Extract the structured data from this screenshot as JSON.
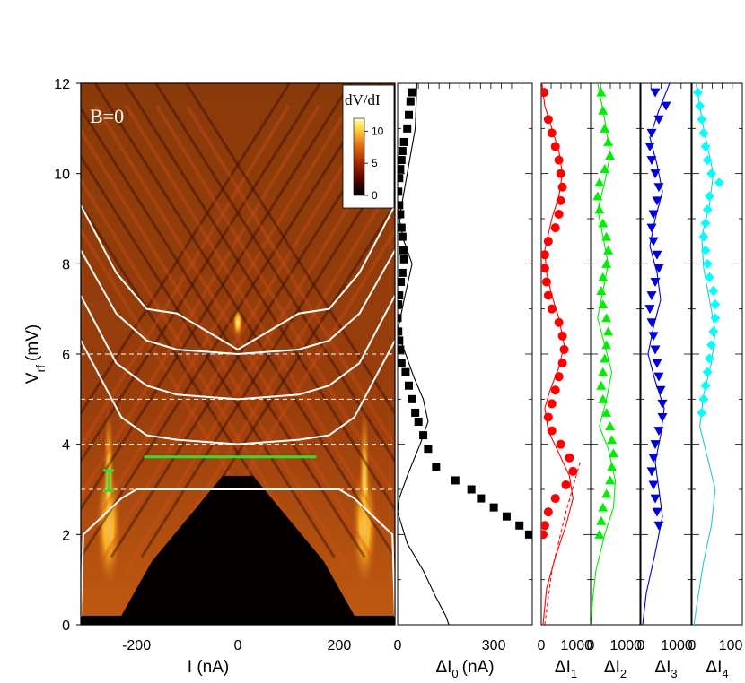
{
  "chart_data": [
    {
      "type": "heatmap",
      "annotation": "B=0",
      "xlabel": "I (nA)",
      "ylabel_main": "V",
      "ylabel_sub": "rf",
      "ylabel_unit": "(mV)",
      "xlim": [
        -310,
        310
      ],
      "ylim": [
        0,
        12
      ],
      "xticks": [
        -200,
        0,
        200
      ],
      "xtick_labels": [
        "-200",
        "0",
        "200"
      ],
      "yticks": [
        0,
        2,
        4,
        6,
        8,
        10,
        12
      ],
      "ytick_labels": [
        "0",
        "2",
        "4",
        "6",
        "8",
        "10",
        "12"
      ],
      "colorbar": {
        "title": "dV/dI",
        "ticks": [
          0,
          5,
          10
        ],
        "tick_labels": [
          "0",
          "5",
          "10"
        ],
        "range": [
          0,
          12
        ]
      },
      "colors": {
        "hot_low": "#000000",
        "hot_mid": "#b03a10",
        "hot_high": "#ffff80",
        "overlay": "#ffffff",
        "marker": "#33dd33",
        "background": "#b85a10"
      },
      "dashed_levels": [
        3,
        4,
        5,
        6
      ],
      "green_bar": {
        "x": [
          -185,
          155
        ],
        "y": 3.72
      },
      "green_errorbar": {
        "x": -255,
        "y": [
          2.97,
          3.42
        ]
      },
      "white_curves": [
        {
          "name": "",
          "I": [
            -310,
            -305,
            -230,
            -200,
            -160,
            -100,
            -60,
            0,
            60,
            100,
            160,
            200,
            230,
            305,
            310
          ],
          "V": [
            0.18,
            2.0,
            2.8,
            3.0,
            3.0,
            3.0,
            3.0,
            3.0,
            3.0,
            3.0,
            3.0,
            3.0,
            2.8,
            2.0,
            0.18
          ]
        },
        {
          "name": "",
          "I": [
            -310,
            -230,
            -180,
            -120,
            -60,
            0,
            60,
            120,
            180,
            230,
            310
          ],
          "V": [
            6.3,
            4.6,
            4.2,
            4.1,
            4.05,
            4.0,
            4.05,
            4.1,
            4.2,
            4.6,
            6.3
          ]
        },
        {
          "name": "",
          "I": [
            -310,
            -240,
            -180,
            -120,
            -60,
            0,
            60,
            120,
            180,
            240,
            310
          ],
          "V": [
            7.3,
            5.8,
            5.3,
            5.1,
            5.05,
            5.0,
            5.05,
            5.1,
            5.3,
            5.8,
            7.3
          ]
        },
        {
          "name": "",
          "I": [
            -310,
            -240,
            -180,
            -120,
            -60,
            0,
            60,
            120,
            180,
            240,
            310
          ],
          "V": [
            8.3,
            6.9,
            6.3,
            6.1,
            6.05,
            6.0,
            6.05,
            6.1,
            6.3,
            6.9,
            8.3
          ]
        },
        {
          "name": "",
          "I": [
            -310,
            -240,
            -180,
            -120,
            -60,
            0,
            60,
            120,
            180,
            240,
            310
          ],
          "V": [
            9.3,
            7.8,
            7.0,
            6.9,
            6.5,
            6.1,
            6.5,
            6.9,
            7.0,
            7.8,
            9.3
          ]
        }
      ]
    },
    {
      "type": "scatter",
      "xlabel_main": "ΔI",
      "xlabel_sub": "0",
      "xlabel_unit": "(nA)",
      "xlim": [
        0,
        420
      ],
      "ylim": [
        0,
        12
      ],
      "xticks": [
        0,
        300
      ],
      "xtick_labels": [
        "0",
        "300"
      ],
      "marker": "square",
      "color": "#000000",
      "points": [
        [
          45,
          11.8
        ],
        [
          40,
          11.6
        ],
        [
          35,
          11.3
        ],
        [
          30,
          11.0
        ],
        [
          20,
          10.7
        ],
        [
          15,
          10.5
        ],
        [
          12,
          10.3
        ],
        [
          8,
          10.1
        ],
        [
          5,
          9.9
        ],
        [
          2,
          9.6
        ],
        [
          5,
          9.3
        ],
        [
          8,
          9.1
        ],
        [
          12,
          8.8
        ],
        [
          15,
          8.6
        ],
        [
          18,
          8.3
        ],
        [
          20,
          8.1
        ],
        [
          15,
          7.8
        ],
        [
          10,
          7.6
        ],
        [
          5,
          7.3
        ],
        [
          2,
          7.1
        ],
        [
          0,
          6.8
        ],
        [
          2,
          6.5
        ],
        [
          5,
          6.3
        ],
        [
          8,
          6.1
        ],
        [
          12,
          5.8
        ],
        [
          25,
          5.6
        ],
        [
          35,
          5.3
        ],
        [
          45,
          5.0
        ],
        [
          55,
          4.7
        ],
        [
          65,
          4.5
        ],
        [
          80,
          4.2
        ],
        [
          95,
          3.9
        ],
        [
          120,
          3.5
        ],
        [
          180,
          3.2
        ],
        [
          230,
          3.0
        ],
        [
          260,
          2.8
        ],
        [
          300,
          2.6
        ],
        [
          340,
          2.4
        ],
        [
          380,
          2.2
        ],
        [
          410,
          2.0
        ]
      ],
      "curve": {
        "x": [
          60,
          55,
          30,
          5,
          20,
          45,
          20,
          0,
          50,
          80,
          95,
          70,
          30,
          5,
          0,
          30,
          80,
          120,
          150,
          160
        ],
        "y": [
          12,
          11,
          10,
          9,
          8.5,
          8,
          7.2,
          6.5,
          5.5,
          5,
          4.5,
          4,
          3.3,
          2.8,
          2.5,
          1.8,
          1.2,
          0.6,
          0.2,
          0
        ]
      }
    },
    {
      "type": "scatter",
      "xlabel_main": "ΔI",
      "xlabel_sub": "1",
      "xlim": [
        0,
        1400
      ],
      "ylim": [
        0,
        12
      ],
      "xticks": [
        0,
        1000
      ],
      "xtick_labels": [
        "0",
        "1000"
      ],
      "marker": "circle",
      "color": "#ff0000",
      "points": [
        [
          80,
          11.8
        ],
        [
          200,
          11.2
        ],
        [
          300,
          10.9
        ],
        [
          400,
          10.6
        ],
        [
          500,
          10.3
        ],
        [
          550,
          10.0
        ],
        [
          600,
          9.7
        ],
        [
          550,
          9.4
        ],
        [
          500,
          9.1
        ],
        [
          400,
          8.8
        ],
        [
          200,
          8.5
        ],
        [
          100,
          8.2
        ],
        [
          100,
          7.9
        ],
        [
          150,
          7.6
        ],
        [
          200,
          7.3
        ],
        [
          300,
          7.0
        ],
        [
          500,
          6.7
        ],
        [
          600,
          6.4
        ],
        [
          650,
          6.1
        ],
        [
          600,
          5.8
        ],
        [
          500,
          5.5
        ],
        [
          400,
          5.2
        ],
        [
          300,
          4.9
        ],
        [
          200,
          4.6
        ],
        [
          300,
          4.3
        ],
        [
          550,
          4.0
        ],
        [
          800,
          3.7
        ],
        [
          900,
          3.4
        ],
        [
          700,
          3.1
        ],
        [
          400,
          2.8
        ],
        [
          200,
          2.5
        ],
        [
          100,
          2.2
        ],
        [
          50,
          2.0
        ]
      ],
      "curve": {
        "x": [
          20,
          100,
          300,
          500,
          600,
          500,
          300,
          100,
          150,
          300,
          500,
          650,
          500,
          250,
          100,
          200,
          500,
          800,
          900,
          700,
          400,
          150,
          50
        ],
        "y": [
          12,
          11.5,
          11,
          10.5,
          10,
          9.5,
          9,
          8.3,
          7.8,
          7.3,
          6.8,
          6.2,
          5.7,
          5.2,
          4.8,
          4.3,
          3.8,
          3.3,
          2.8,
          2.2,
          1.5,
          0.8,
          0
        ]
      },
      "dashed": {
        "x": [
          1100,
          700,
          300,
          100
        ],
        "y": [
          3.6,
          2.5,
          1.2,
          0
        ]
      }
    },
    {
      "type": "scatter",
      "xlabel_main": "ΔI",
      "xlabel_sub": "2",
      "xlim": [
        0,
        1400
      ],
      "ylim": [
        0,
        12
      ],
      "xticks": [
        0,
        1000
      ],
      "xtick_labels": [
        "0",
        "1000"
      ],
      "marker": "triangle-up",
      "color": "#00ee00",
      "points": [
        [
          300,
          11.8
        ],
        [
          350,
          11.4
        ],
        [
          400,
          11.0
        ],
        [
          500,
          10.7
        ],
        [
          550,
          10.4
        ],
        [
          400,
          10.1
        ],
        [
          250,
          9.8
        ],
        [
          200,
          9.5
        ],
        [
          250,
          9.2
        ],
        [
          350,
          8.9
        ],
        [
          450,
          8.6
        ],
        [
          500,
          8.3
        ],
        [
          450,
          8.0
        ],
        [
          350,
          7.7
        ],
        [
          300,
          7.4
        ],
        [
          350,
          7.1
        ],
        [
          450,
          6.8
        ],
        [
          500,
          6.5
        ],
        [
          450,
          6.2
        ],
        [
          400,
          5.9
        ],
        [
          350,
          5.6
        ],
        [
          300,
          5.3
        ],
        [
          350,
          5.0
        ],
        [
          450,
          4.7
        ],
        [
          550,
          4.4
        ],
        [
          600,
          4.1
        ],
        [
          650,
          3.8
        ],
        [
          600,
          3.5
        ],
        [
          550,
          3.2
        ],
        [
          450,
          2.9
        ],
        [
          350,
          2.6
        ],
        [
          300,
          2.3
        ],
        [
          250,
          2.0
        ]
      ],
      "curve": {
        "x": [
          200,
          400,
          550,
          400,
          200,
          350,
          500,
          350,
          200,
          400,
          600,
          450,
          250,
          500,
          700,
          650,
          400,
          150,
          50,
          20
        ],
        "y": [
          12,
          11.2,
          10.4,
          9.8,
          9.2,
          8.6,
          8.0,
          7.4,
          6.8,
          6.2,
          5.6,
          5.0,
          4.4,
          3.9,
          3.2,
          2.6,
          2.0,
          1.2,
          0.5,
          0
        ]
      }
    },
    {
      "type": "scatter",
      "xlabel_main": "ΔI",
      "xlabel_sub": "3",
      "xlim": [
        0,
        1400
      ],
      "ylim": [
        0,
        12
      ],
      "xticks": [
        0,
        1000
      ],
      "xtick_labels": [
        "0",
        "1000"
      ],
      "marker": "triangle-down",
      "color": "#0000dd",
      "points": [
        [
          400,
          11.8
        ],
        [
          700,
          11.5
        ],
        [
          500,
          11.2
        ],
        [
          300,
          10.9
        ],
        [
          250,
          10.6
        ],
        [
          300,
          10.3
        ],
        [
          400,
          10.0
        ],
        [
          500,
          9.7
        ],
        [
          450,
          9.4
        ],
        [
          350,
          9.1
        ],
        [
          300,
          8.8
        ],
        [
          350,
          8.5
        ],
        [
          450,
          8.2
        ],
        [
          500,
          7.9
        ],
        [
          400,
          7.6
        ],
        [
          300,
          7.3
        ],
        [
          250,
          7.0
        ],
        [
          300,
          6.7
        ],
        [
          350,
          6.4
        ],
        [
          400,
          6.1
        ],
        [
          450,
          5.8
        ],
        [
          500,
          5.5
        ],
        [
          550,
          5.2
        ],
        [
          600,
          4.9
        ],
        [
          600,
          4.6
        ],
        [
          500,
          4.3
        ],
        [
          400,
          4.0
        ],
        [
          350,
          3.7
        ],
        [
          300,
          3.4
        ],
        [
          350,
          3.1
        ],
        [
          400,
          2.8
        ],
        [
          450,
          2.5
        ],
        [
          500,
          2.2
        ]
      ],
      "curve": {
        "x": [
          800,
          500,
          250,
          450,
          600,
          400,
          250,
          450,
          550,
          350,
          200,
          400,
          650,
          550,
          400,
          500,
          600,
          400,
          150,
          50
        ],
        "y": [
          12,
          11.4,
          10.8,
          10.2,
          9.6,
          9.0,
          8.4,
          7.8,
          7.2,
          6.6,
          6.0,
          5.4,
          4.8,
          4.2,
          3.6,
          3.0,
          2.4,
          1.6,
          0.7,
          0
        ]
      }
    },
    {
      "type": "scatter",
      "xlabel_main": "ΔI",
      "xlabel_sub": "4",
      "xlim": [
        0,
        130
      ],
      "ylim": [
        0,
        12
      ],
      "xticks": [
        0,
        100
      ],
      "xtick_labels": [
        "0",
        "100"
      ],
      "marker": "diamond",
      "color": "#00ffff",
      "points": [
        [
          15,
          11.8
        ],
        [
          20,
          11.5
        ],
        [
          25,
          11.2
        ],
        [
          30,
          10.9
        ],
        [
          35,
          10.6
        ],
        [
          40,
          10.3
        ],
        [
          50,
          10.0
        ],
        [
          70,
          9.8
        ],
        [
          45,
          9.5
        ],
        [
          40,
          9.2
        ],
        [
          35,
          8.9
        ],
        [
          30,
          8.6
        ],
        [
          35,
          8.3
        ],
        [
          40,
          8.0
        ],
        [
          45,
          7.7
        ],
        [
          55,
          7.4
        ],
        [
          60,
          7.1
        ],
        [
          60,
          6.8
        ],
        [
          55,
          6.5
        ],
        [
          50,
          6.2
        ],
        [
          45,
          5.9
        ],
        [
          40,
          5.6
        ],
        [
          35,
          5.3
        ],
        [
          30,
          5.0
        ],
        [
          25,
          4.7
        ]
      ],
      "curve": {
        "x": [
          10,
          30,
          55,
          45,
          25,
          30,
          45,
          60,
          50,
          30,
          20,
          40,
          60,
          50,
          30,
          15,
          5
        ],
        "y": [
          12,
          11.0,
          10.0,
          9.3,
          8.6,
          7.9,
          7.2,
          6.5,
          5.8,
          5.1,
          4.4,
          3.7,
          3.0,
          2.2,
          1.4,
          0.6,
          0
        ]
      }
    }
  ]
}
